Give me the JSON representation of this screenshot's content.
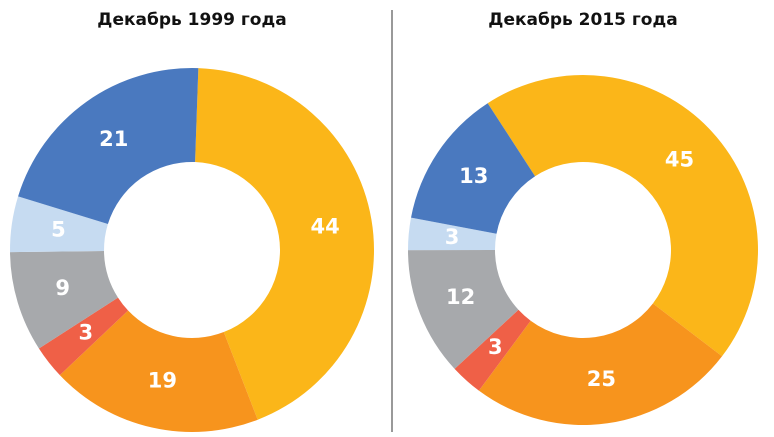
{
  "chart_data": [
    {
      "type": "pie",
      "title": "Декабрь 1999 года",
      "values": [
        44,
        19,
        3,
        9,
        5,
        21
      ],
      "colors": [
        "#fbb619",
        "#f7941d",
        "#ef6047",
        "#a7a9ac",
        "#c6dbf1",
        "#4a79bf"
      ]
    },
    {
      "type": "pie",
      "title": "Декабрь 2015 года",
      "values": [
        45,
        25,
        3,
        12,
        3,
        13
      ],
      "colors": [
        "#fbb619",
        "#f7941d",
        "#ef6047",
        "#a7a9ac",
        "#c6dbf1",
        "#4a79bf"
      ]
    }
  ]
}
